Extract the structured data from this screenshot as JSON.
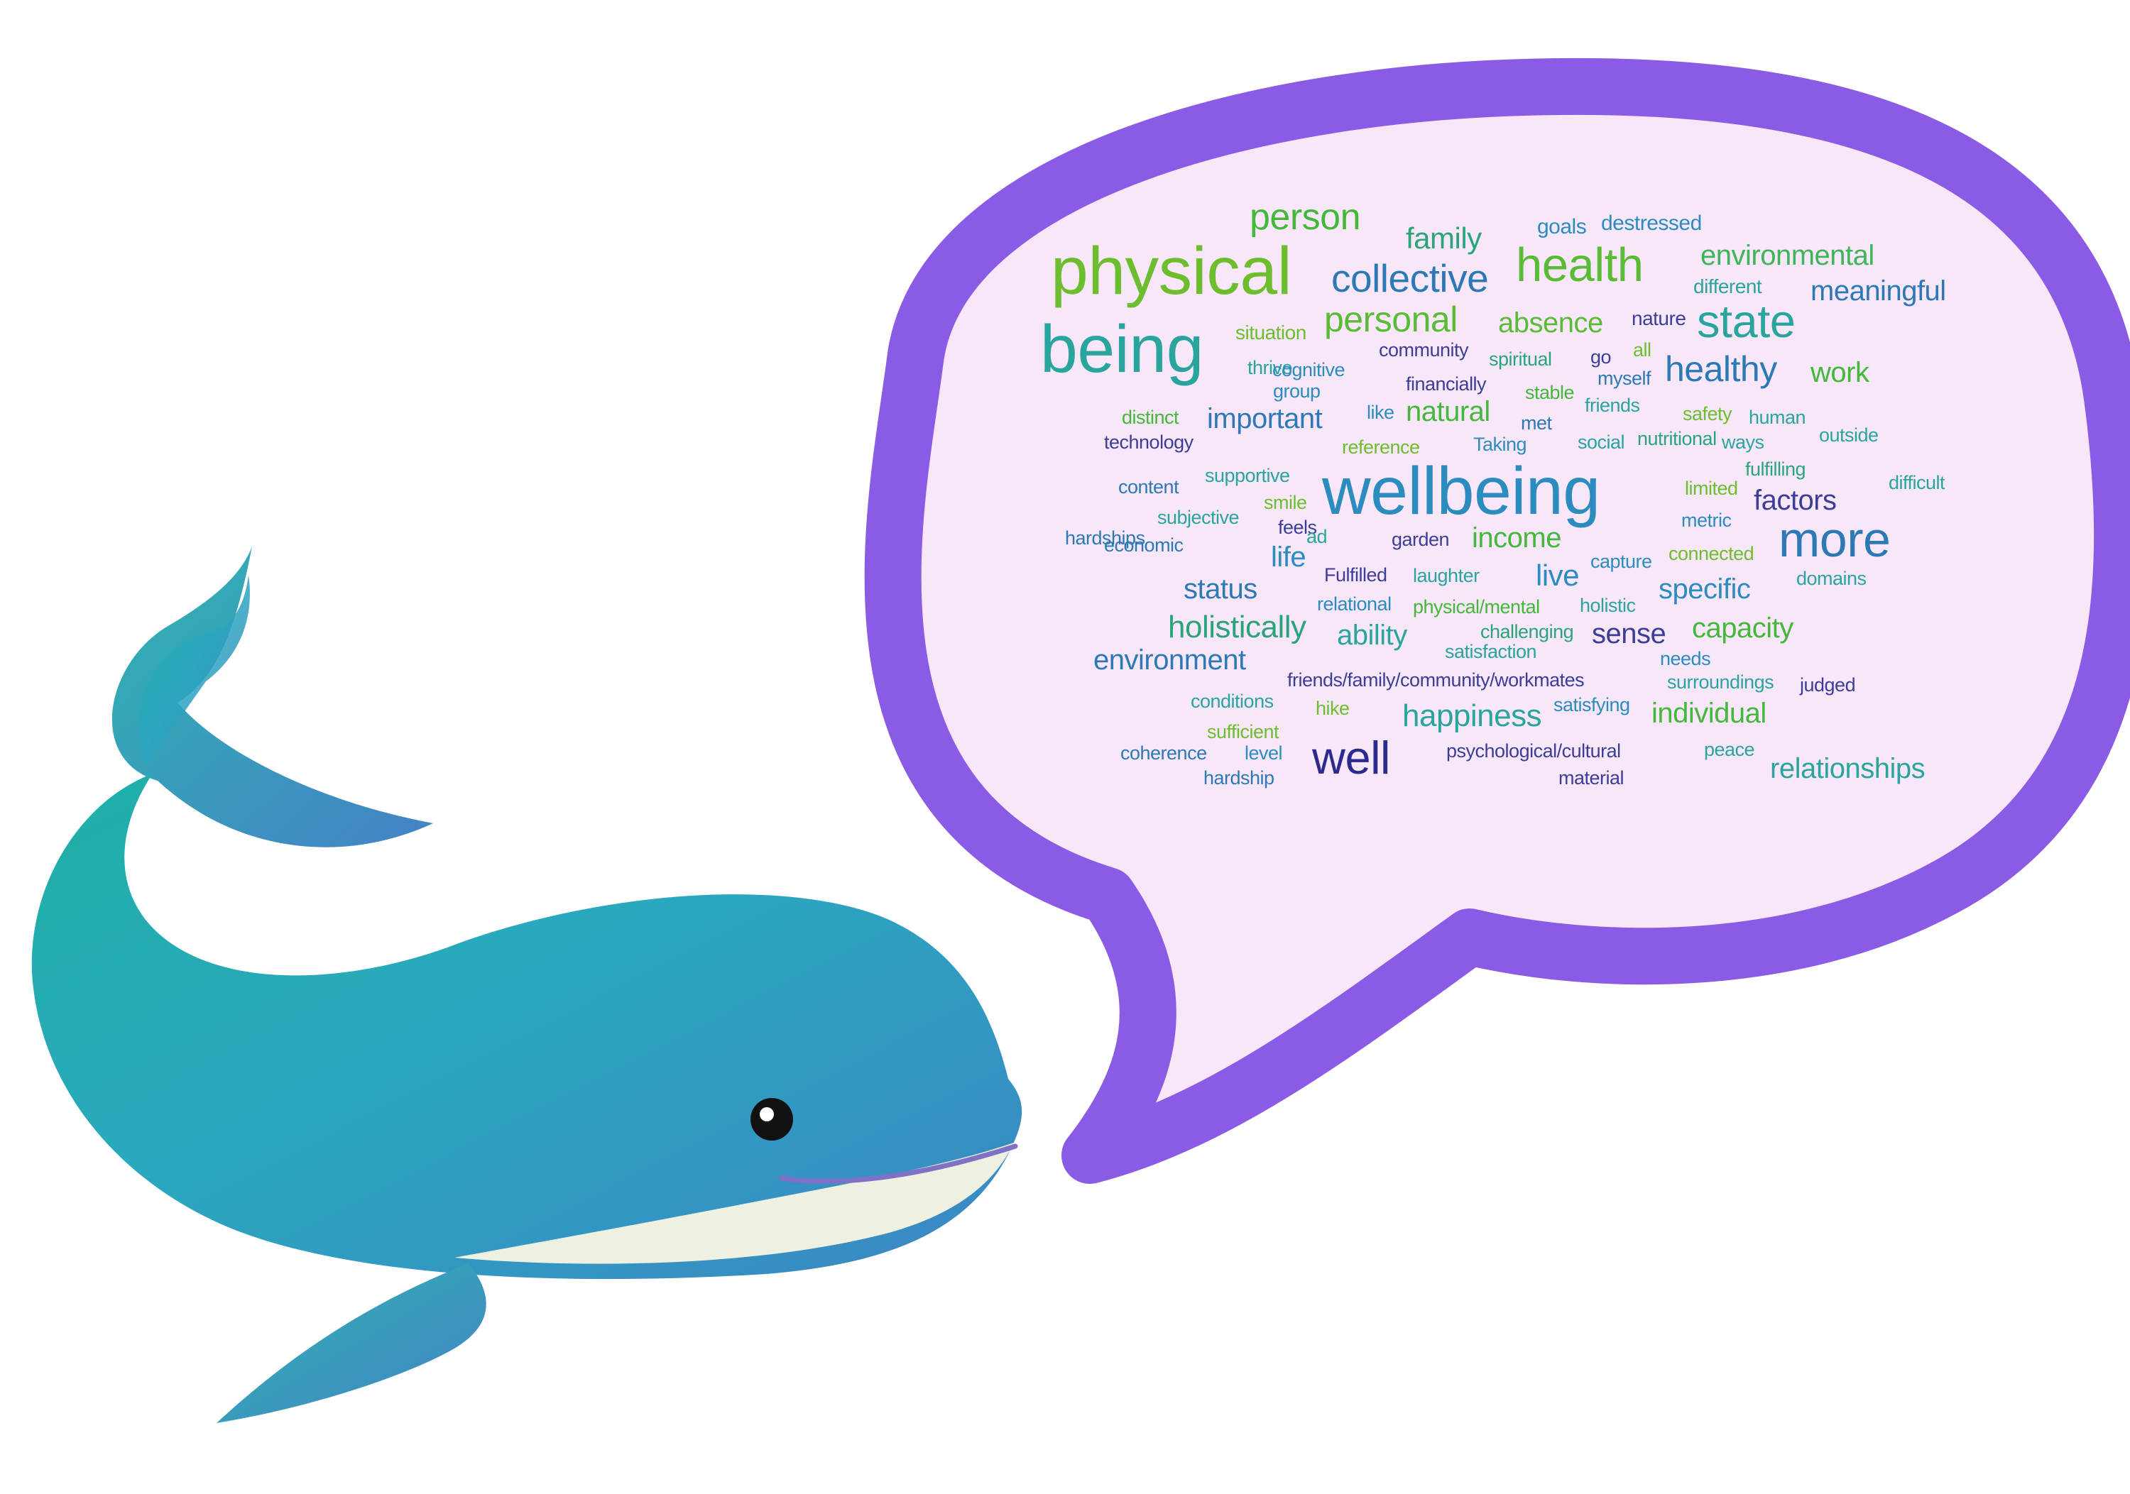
{
  "illustration": {
    "whale": "whale-icon",
    "bubble": "speech-bubble-icon"
  },
  "colors": {
    "bubble_border": "#8b5be6",
    "bubble_fill": "#f8e7f8",
    "whale_body": "#2aa6b8",
    "whale_belly": "#eef0e2"
  },
  "word_cloud": {
    "words": [
      {
        "text": "person",
        "color": "#43b83b"
      },
      {
        "text": "family",
        "color": "#2aa57a"
      },
      {
        "text": "goals",
        "color": "#2c8cc0"
      },
      {
        "text": "destressed",
        "color": "#2c8cc0"
      },
      {
        "text": "physical",
        "color": "#6cbe2f"
      },
      {
        "text": "collective",
        "color": "#2c79b5"
      },
      {
        "text": "health",
        "color": "#59bb36"
      },
      {
        "text": "environmental",
        "color": "#3fb55a"
      },
      {
        "text": "different",
        "color": "#2aa59d"
      },
      {
        "text": "meaningful",
        "color": "#2c79b5"
      },
      {
        "text": "being",
        "color": "#2aa59d"
      },
      {
        "text": "situation",
        "color": "#6cbe2f"
      },
      {
        "text": "personal",
        "color": "#59bb36"
      },
      {
        "text": "absence",
        "color": "#59bb36"
      },
      {
        "text": "nature",
        "color": "#3a3e98"
      },
      {
        "text": "state",
        "color": "#2aa59d"
      },
      {
        "text": "community",
        "color": "#3a3e98"
      },
      {
        "text": "go",
        "color": "#3a3e98"
      },
      {
        "text": "all",
        "color": "#6cbe2f"
      },
      {
        "text": "thrive",
        "color": "#2aa59d"
      },
      {
        "text": "cognitive",
        "color": "#2c8cc0"
      },
      {
        "text": "spiritual",
        "color": "#2aa57a"
      },
      {
        "text": "myself",
        "color": "#2c79b5"
      },
      {
        "text": "healthy",
        "color": "#2c79b5"
      },
      {
        "text": "work",
        "color": "#43b83b"
      },
      {
        "text": "group",
        "color": "#2c8cc0"
      },
      {
        "text": "financially",
        "color": "#3a3e98"
      },
      {
        "text": "stable",
        "color": "#43b83b"
      },
      {
        "text": "friends",
        "color": "#2aa59d"
      },
      {
        "text": "distinct",
        "color": "#43b83b"
      },
      {
        "text": "like",
        "color": "#2c8cc0"
      },
      {
        "text": "natural",
        "color": "#43b83b"
      },
      {
        "text": "met",
        "color": "#2c79b5"
      },
      {
        "text": "safety",
        "color": "#6cbe2f"
      },
      {
        "text": "human",
        "color": "#2aa59d"
      },
      {
        "text": "important",
        "color": "#2c79b5"
      },
      {
        "text": "technology",
        "color": "#3a3e98"
      },
      {
        "text": "reference",
        "color": "#6cbe2f"
      },
      {
        "text": "Taking",
        "color": "#2c8cc0"
      },
      {
        "text": "social",
        "color": "#2aa59d"
      },
      {
        "text": "nutritional",
        "color": "#2aa57a"
      },
      {
        "text": "ways",
        "color": "#2aa59d"
      },
      {
        "text": "outside",
        "color": "#2aa59d"
      },
      {
        "text": "fulfilling",
        "color": "#2aa57a"
      },
      {
        "text": "supportive",
        "color": "#2aa59d"
      },
      {
        "text": "wellbeing",
        "color": "#2c8cc0"
      },
      {
        "text": "limited",
        "color": "#6cbe2f"
      },
      {
        "text": "difficult",
        "color": "#2aa59d"
      },
      {
        "text": "content",
        "color": "#2c79b5"
      },
      {
        "text": "smile",
        "color": "#6cbe2f"
      },
      {
        "text": "factors",
        "color": "#3a3e98"
      },
      {
        "text": "subjective",
        "color": "#2aa59d"
      },
      {
        "text": "feels",
        "color": "#3a3e98"
      },
      {
        "text": "metric",
        "color": "#2c8cc0"
      },
      {
        "text": "hardships",
        "color": "#2c79b5"
      },
      {
        "text": "economic",
        "color": "#2c79b5"
      },
      {
        "text": "ad",
        "color": "#2aa59d"
      },
      {
        "text": "garden",
        "color": "#3a3e98"
      },
      {
        "text": "income",
        "color": "#43b83b"
      },
      {
        "text": "more",
        "color": "#2c79b5"
      },
      {
        "text": "life",
        "color": "#2c8cc0"
      },
      {
        "text": "capture",
        "color": "#2c8cc0"
      },
      {
        "text": "connected",
        "color": "#6cbe2f"
      },
      {
        "text": "Fulfilled",
        "color": "#3a3e98"
      },
      {
        "text": "laughter",
        "color": "#2aa59d"
      },
      {
        "text": "live",
        "color": "#2c8cc0"
      },
      {
        "text": "domains",
        "color": "#2aa59d"
      },
      {
        "text": "status",
        "color": "#2c79b5"
      },
      {
        "text": "relational",
        "color": "#2c8cc0"
      },
      {
        "text": "physical/mental",
        "color": "#43b83b"
      },
      {
        "text": "holistic",
        "color": "#2aa59d"
      },
      {
        "text": "specific",
        "color": "#2c8cc0"
      },
      {
        "text": "holistically",
        "color": "#2aa57a"
      },
      {
        "text": "ability",
        "color": "#2aa59d"
      },
      {
        "text": "challenging",
        "color": "#2aa57a"
      },
      {
        "text": "sense",
        "color": "#3a3e98"
      },
      {
        "text": "capacity",
        "color": "#43b83b"
      },
      {
        "text": "satisfaction",
        "color": "#2aa59d"
      },
      {
        "text": "environment",
        "color": "#2c79b5"
      },
      {
        "text": "needs",
        "color": "#2c8cc0"
      },
      {
        "text": "friends/family/community/workmates",
        "color": "#3a3e98"
      },
      {
        "text": "surroundings",
        "color": "#2aa59d"
      },
      {
        "text": "judged",
        "color": "#3a3e98"
      },
      {
        "text": "conditions",
        "color": "#2aa59d"
      },
      {
        "text": "hike",
        "color": "#6cbe2f"
      },
      {
        "text": "happiness",
        "color": "#2aa59d"
      },
      {
        "text": "satisfying",
        "color": "#2c8cc0"
      },
      {
        "text": "individual",
        "color": "#43b83b"
      },
      {
        "text": "sufficient",
        "color": "#6cbe2f"
      },
      {
        "text": "coherence",
        "color": "#2c79b5"
      },
      {
        "text": "level",
        "color": "#2c8cc0"
      },
      {
        "text": "well",
        "color": "#2b2a8e"
      },
      {
        "text": "psychological/cultural",
        "color": "#3a3e98"
      },
      {
        "text": "peace",
        "color": "#2aa59d"
      },
      {
        "text": "relationships",
        "color": "#2aa59d"
      },
      {
        "text": "hardship",
        "color": "#2c79b5"
      },
      {
        "text": "material",
        "color": "#3a3e98"
      }
    ]
  }
}
